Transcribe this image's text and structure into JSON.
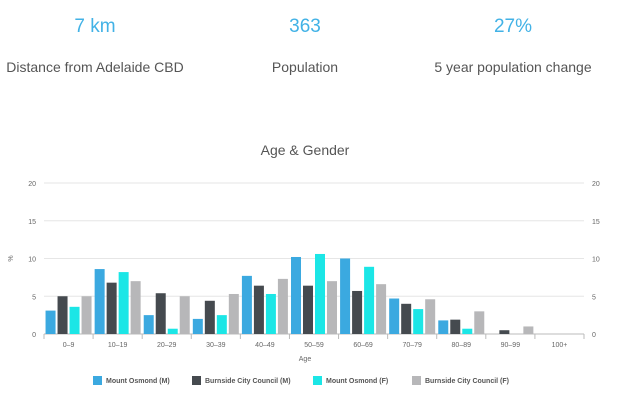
{
  "stats": [
    {
      "value": "7 km",
      "label": "Distance from Adelaide CBD"
    },
    {
      "value": "363",
      "label": "Population"
    },
    {
      "value": "27%",
      "label": "5 year population change"
    }
  ],
  "chart_data": {
    "type": "bar",
    "title": "Age & Gender",
    "xlabel": "Age",
    "ylabel": "%",
    "ylim": [
      0,
      20
    ],
    "yticks": [
      0,
      5,
      10,
      15,
      20
    ],
    "grid": true,
    "legend_position": "bottom",
    "categories": [
      "0–9",
      "10–19",
      "20–29",
      "30–39",
      "40–49",
      "50–59",
      "60–69",
      "70–79",
      "80–89",
      "90–99",
      "100+"
    ],
    "series": [
      {
        "name": "Mount Osmond (M)",
        "color": "#3ba9e0",
        "values": [
          3.1,
          8.6,
          2.5,
          2.0,
          7.7,
          10.2,
          10.0,
          4.7,
          1.8,
          0,
          0
        ]
      },
      {
        "name": "Burnside City Council (M)",
        "color": "#454a4f",
        "values": [
          5.0,
          6.8,
          5.4,
          4.4,
          6.4,
          6.4,
          5.7,
          4.0,
          1.9,
          0.5,
          0
        ]
      },
      {
        "name": "Mount Osmond (F)",
        "color": "#1be6e6",
        "values": [
          3.6,
          8.2,
          0.7,
          2.5,
          5.3,
          10.6,
          8.9,
          3.3,
          0.7,
          0,
          0
        ]
      },
      {
        "name": "Burnside City Council (F)",
        "color": "#b7b7b9",
        "values": [
          5.0,
          7.0,
          5.0,
          5.3,
          7.3,
          7.0,
          6.6,
          4.6,
          3.0,
          1.0,
          0
        ]
      }
    ]
  }
}
